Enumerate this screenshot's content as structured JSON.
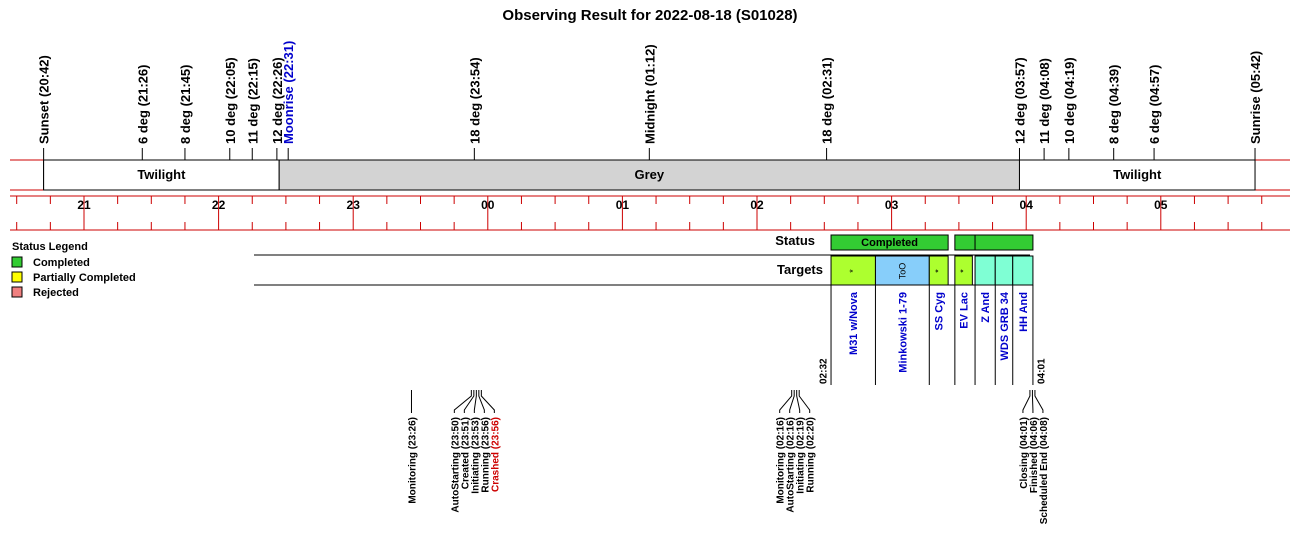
{
  "chart_data": {
    "type": "timeline",
    "title": "Observing Result for 2022-08-18 (S01028)",
    "hour_range": [
      20.2,
      26.0
    ],
    "hour_ticks": [
      "21",
      "22",
      "23",
      "00",
      "01",
      "02",
      "03",
      "04",
      "05"
    ],
    "events": [
      {
        "label": "Sunset (20:42)",
        "hour": 20.7,
        "color": "#000000"
      },
      {
        "label": "6 deg (21:26)",
        "hour": 21.433,
        "color": "#000000"
      },
      {
        "label": "8 deg (21:45)",
        "hour": 21.75,
        "color": "#000000"
      },
      {
        "label": "10 deg (22:05)",
        "hour": 22.083,
        "color": "#000000"
      },
      {
        "label": "11 deg (22:15)",
        "hour": 22.25,
        "color": "#000000"
      },
      {
        "label": "12 deg (22:26)",
        "hour": 22.433,
        "color": "#000000"
      },
      {
        "label": "Moonrise (22:31)",
        "hour": 22.517,
        "color": "#0000cc"
      },
      {
        "label": "18 deg (23:54)",
        "hour": 23.9,
        "color": "#000000"
      },
      {
        "label": "Midnight (01:12)",
        "hour": 25.2,
        "color": "#000000"
      },
      {
        "label": "18 deg (02:31)",
        "hour": 26.517,
        "color": "#000000"
      },
      {
        "label": "12 deg (03:57)",
        "hour": 27.95,
        "color": "#000000"
      },
      {
        "label": "11 deg (04:08)",
        "hour": 28.133,
        "color": "#000000"
      },
      {
        "label": "10 deg (04:19)",
        "hour": 28.317,
        "color": "#000000"
      },
      {
        "label": "8 deg (04:39)",
        "hour": 28.65,
        "color": "#000000"
      },
      {
        "label": "6 deg (04:57)",
        "hour": 28.95,
        "color": "#000000"
      },
      {
        "label": "Sunrise (05:42)",
        "hour": 29.7,
        "color": "#000000"
      }
    ],
    "phases": [
      {
        "label": "Twilight",
        "start": 20.7,
        "end": 22.45,
        "color": "#ffffff"
      },
      {
        "label": "Grey",
        "start": 22.45,
        "end": 27.95,
        "color": "#d3d3d3"
      },
      {
        "label": "Twilight",
        "start": 27.95,
        "end": 29.7,
        "color": "#ffffff"
      }
    ],
    "legend": {
      "title": "Status Legend",
      "items": [
        {
          "label": "Completed",
          "color": "#33cc33"
        },
        {
          "label": "Partially Completed",
          "color": "#ffff00"
        },
        {
          "label": "Rejected",
          "color": "#f08080"
        }
      ]
    },
    "status_row": {
      "label": "Status",
      "segments": [
        {
          "start": 26.55,
          "end": 27.42,
          "label": "Completed",
          "color": "#33cc33"
        },
        {
          "start": 27.47,
          "end": 27.62,
          "label": "",
          "color": "#33cc33"
        },
        {
          "start": 27.62,
          "end": 28.05,
          "label": "",
          "color": "#33cc33"
        }
      ]
    },
    "targets_row": {
      "label": "Targets",
      "targets": [
        {
          "name": "M31 w/Nova",
          "start": 26.55,
          "end": 26.88,
          "color": "#adff2f",
          "mark": "*"
        },
        {
          "name": "Minkowski 1-79",
          "start": 26.88,
          "end": 27.28,
          "color": "#87cefa",
          "mark": "ToO"
        },
        {
          "name": "SS Cyg",
          "start": 27.28,
          "end": 27.42,
          "color": "#adff2f",
          "mark": "*"
        },
        {
          "name": "EV Lac",
          "start": 27.47,
          "end": 27.6,
          "color": "#adff2f",
          "mark": "*"
        },
        {
          "name": "Z And",
          "start": 27.62,
          "end": 27.77,
          "color": "#7fffd4",
          "mark": ""
        },
        {
          "name": "WDS GRB 34",
          "start": 27.77,
          "end": 27.9,
          "color": "#7fffd4",
          "mark": ""
        },
        {
          "name": "HH And",
          "start": 27.9,
          "end": 28.05,
          "color": "#7fffd4",
          "mark": ""
        }
      ]
    },
    "time_marks": [
      {
        "label": "02:32",
        "hour": 26.533
      },
      {
        "label": "04:01",
        "hour": 28.017
      }
    ],
    "log_groups": [
      {
        "anchor": 23.433,
        "entries": [
          {
            "label": "Monitoring (23:26)",
            "color": "#000000"
          }
        ]
      },
      {
        "anchor": 23.9,
        "entries": [
          {
            "label": "AutoStarting (23:50)",
            "color": "#000000"
          },
          {
            "label": "Created (23:51)",
            "color": "#000000"
          },
          {
            "label": "Initiating (23:53)",
            "color": "#000000"
          },
          {
            "label": "Running (23:56)",
            "color": "#000000"
          },
          {
            "label": "Crashed (23:56)",
            "color": "#cc0000"
          }
        ]
      },
      {
        "anchor": 26.28,
        "entries": [
          {
            "label": "Monitoring (02:16)",
            "color": "#000000"
          },
          {
            "label": "AutoStarting (02:16)",
            "color": "#000000"
          },
          {
            "label": "Initiating (02:19)",
            "color": "#000000"
          },
          {
            "label": "Running (02:20)",
            "color": "#000000"
          }
        ]
      },
      {
        "anchor": 28.05,
        "entries": [
          {
            "label": "Closing (04:01)",
            "color": "#000000"
          },
          {
            "label": "Finished (04:06)",
            "color": "#000000"
          },
          {
            "label": "Scheduled End (04:08)",
            "color": "#000000"
          }
        ]
      }
    ]
  }
}
